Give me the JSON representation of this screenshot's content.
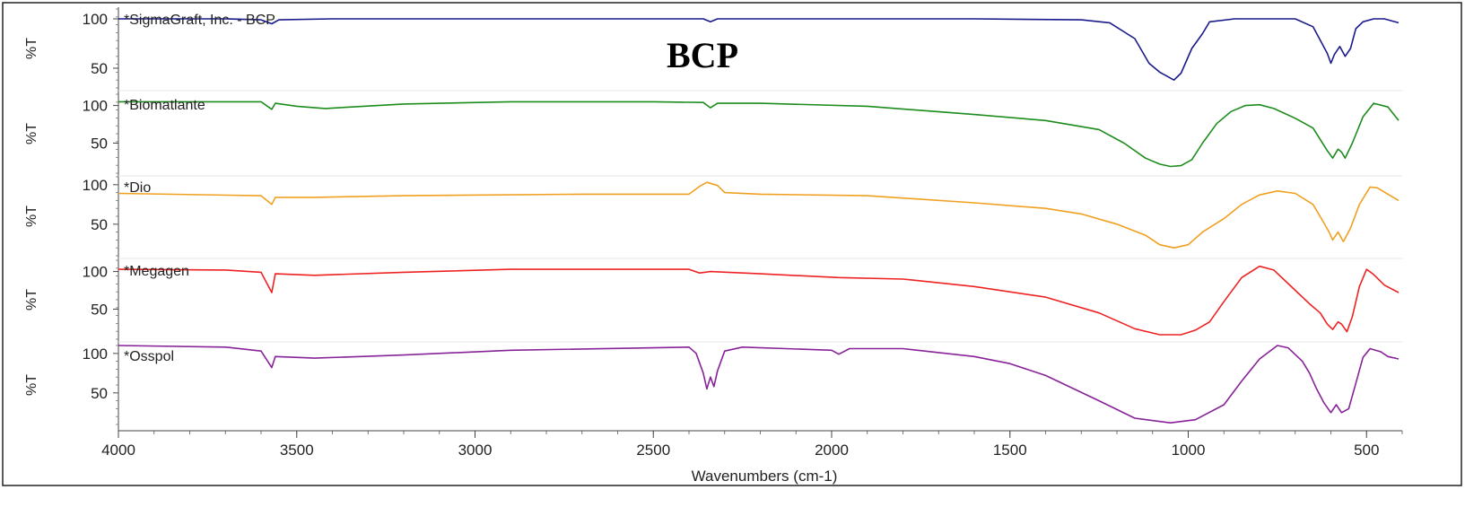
{
  "chart_data": {
    "type": "line",
    "title": "BCP",
    "xlabel": "Wavenumbers (cm-1)",
    "ylabel": "%T",
    "xlim": [
      4000,
      400
    ],
    "x_reversed": true,
    "x_ticks": [
      "4000",
      "3500",
      "3000",
      "2500",
      "2000",
      "1500",
      "1000",
      "500"
    ],
    "y_ticks": [
      "100",
      "50"
    ],
    "grid": false,
    "legend": "none",
    "panels": [
      {
        "name": "*SigmaGraft, Inc. - BCP",
        "color": "#1a1a8c",
        "ylim": [
          30,
          110
        ],
        "points": [
          [
            4000,
            100
          ],
          [
            3700,
            100
          ],
          [
            3600,
            99
          ],
          [
            3570,
            95
          ],
          [
            3550,
            99
          ],
          [
            3400,
            100
          ],
          [
            2360,
            100
          ],
          [
            2340,
            97
          ],
          [
            2320,
            100
          ],
          [
            1600,
            100
          ],
          [
            1300,
            99
          ],
          [
            1220,
            96
          ],
          [
            1150,
            80
          ],
          [
            1110,
            55
          ],
          [
            1080,
            46
          ],
          [
            1040,
            38
          ],
          [
            1020,
            45
          ],
          [
            990,
            70
          ],
          [
            960,
            85
          ],
          [
            940,
            97
          ],
          [
            870,
            100
          ],
          [
            700,
            100
          ],
          [
            650,
            92
          ],
          [
            610,
            65
          ],
          [
            600,
            55
          ],
          [
            590,
            64
          ],
          [
            575,
            72
          ],
          [
            560,
            62
          ],
          [
            545,
            70
          ],
          [
            530,
            90
          ],
          [
            510,
            97
          ],
          [
            480,
            100
          ],
          [
            450,
            100
          ],
          [
            410,
            96
          ]
        ]
      },
      {
        "name": "*Biomatlante",
        "color": "#1c8c1c",
        "ylim": [
          10,
          115
        ],
        "points": [
          [
            4000,
            105
          ],
          [
            3600,
            105
          ],
          [
            3570,
            95
          ],
          [
            3560,
            103
          ],
          [
            3500,
            99
          ],
          [
            3420,
            96
          ],
          [
            3200,
            102
          ],
          [
            2900,
            105
          ],
          [
            2500,
            105
          ],
          [
            2360,
            104
          ],
          [
            2340,
            97
          ],
          [
            2320,
            103
          ],
          [
            2200,
            103
          ],
          [
            1900,
            99
          ],
          [
            1600,
            88
          ],
          [
            1400,
            80
          ],
          [
            1250,
            68
          ],
          [
            1180,
            50
          ],
          [
            1120,
            30
          ],
          [
            1080,
            22
          ],
          [
            1050,
            19
          ],
          [
            1020,
            20
          ],
          [
            990,
            28
          ],
          [
            960,
            50
          ],
          [
            920,
            76
          ],
          [
            880,
            92
          ],
          [
            840,
            100
          ],
          [
            800,
            101
          ],
          [
            760,
            96
          ],
          [
            700,
            83
          ],
          [
            650,
            70
          ],
          [
            610,
            40
          ],
          [
            595,
            30
          ],
          [
            580,
            42
          ],
          [
            570,
            38
          ],
          [
            560,
            30
          ],
          [
            540,
            50
          ],
          [
            510,
            85
          ],
          [
            480,
            103
          ],
          [
            440,
            98
          ],
          [
            410,
            80
          ]
        ]
      },
      {
        "name": "*Dio",
        "color": "#f0a020",
        "ylim": [
          10,
          110
        ],
        "points": [
          [
            4000,
            89
          ],
          [
            3600,
            86
          ],
          [
            3570,
            75
          ],
          [
            3560,
            84
          ],
          [
            3450,
            84
          ],
          [
            3200,
            86
          ],
          [
            2700,
            88
          ],
          [
            2400,
            88
          ],
          [
            2370,
            98
          ],
          [
            2350,
            103
          ],
          [
            2320,
            99
          ],
          [
            2300,
            90
          ],
          [
            2200,
            88
          ],
          [
            1900,
            86
          ],
          [
            1600,
            77
          ],
          [
            1400,
            70
          ],
          [
            1300,
            63
          ],
          [
            1200,
            50
          ],
          [
            1120,
            36
          ],
          [
            1080,
            24
          ],
          [
            1040,
            20
          ],
          [
            1000,
            24
          ],
          [
            960,
            40
          ],
          [
            900,
            57
          ],
          [
            850,
            75
          ],
          [
            800,
            87
          ],
          [
            750,
            92
          ],
          [
            700,
            89
          ],
          [
            650,
            75
          ],
          [
            620,
            52
          ],
          [
            605,
            40
          ],
          [
            595,
            30
          ],
          [
            580,
            40
          ],
          [
            565,
            28
          ],
          [
            545,
            45
          ],
          [
            520,
            75
          ],
          [
            490,
            97
          ],
          [
            470,
            96
          ],
          [
            440,
            88
          ],
          [
            410,
            80
          ]
        ]
      },
      {
        "name": "*Megagen",
        "color": "#ee2222",
        "ylim": [
          10,
          115
        ],
        "points": [
          [
            4000,
            103
          ],
          [
            3700,
            102
          ],
          [
            3600,
            99
          ],
          [
            3570,
            72
          ],
          [
            3560,
            97
          ],
          [
            3450,
            95
          ],
          [
            3200,
            99
          ],
          [
            2900,
            103
          ],
          [
            2400,
            103
          ],
          [
            2370,
            98
          ],
          [
            2340,
            100
          ],
          [
            2200,
            97
          ],
          [
            1980,
            92
          ],
          [
            1800,
            90
          ],
          [
            1600,
            80
          ],
          [
            1400,
            66
          ],
          [
            1250,
            45
          ],
          [
            1150,
            24
          ],
          [
            1080,
            16
          ],
          [
            1020,
            16
          ],
          [
            980,
            22
          ],
          [
            940,
            33
          ],
          [
            900,
            60
          ],
          [
            850,
            92
          ],
          [
            800,
            107
          ],
          [
            760,
            102
          ],
          [
            700,
            75
          ],
          [
            660,
            57
          ],
          [
            630,
            45
          ],
          [
            610,
            30
          ],
          [
            595,
            23
          ],
          [
            580,
            33
          ],
          [
            570,
            30
          ],
          [
            555,
            20
          ],
          [
            540,
            40
          ],
          [
            520,
            80
          ],
          [
            500,
            103
          ],
          [
            480,
            96
          ],
          [
            450,
            82
          ],
          [
            410,
            72
          ]
        ]
      },
      {
        "name": "*Osspol",
        "color": "#882299",
        "ylim": [
          10,
          110
        ],
        "points": [
          [
            4000,
            110
          ],
          [
            3700,
            108
          ],
          [
            3600,
            103
          ],
          [
            3570,
            82
          ],
          [
            3560,
            96
          ],
          [
            3450,
            94
          ],
          [
            3200,
            98
          ],
          [
            2900,
            104
          ],
          [
            2400,
            108
          ],
          [
            2380,
            100
          ],
          [
            2360,
            75
          ],
          [
            2350,
            55
          ],
          [
            2340,
            70
          ],
          [
            2330,
            58
          ],
          [
            2320,
            78
          ],
          [
            2300,
            103
          ],
          [
            2250,
            108
          ],
          [
            2000,
            104
          ],
          [
            1980,
            99
          ],
          [
            1950,
            106
          ],
          [
            1800,
            106
          ],
          [
            1600,
            96
          ],
          [
            1500,
            87
          ],
          [
            1400,
            72
          ],
          [
            1250,
            40
          ],
          [
            1150,
            18
          ],
          [
            1050,
            12
          ],
          [
            980,
            16
          ],
          [
            900,
            35
          ],
          [
            850,
            65
          ],
          [
            800,
            93
          ],
          [
            750,
            110
          ],
          [
            720,
            107
          ],
          [
            680,
            90
          ],
          [
            660,
            75
          ],
          [
            640,
            55
          ],
          [
            620,
            38
          ],
          [
            600,
            25
          ],
          [
            585,
            35
          ],
          [
            570,
            25
          ],
          [
            550,
            30
          ],
          [
            530,
            62
          ],
          [
            510,
            95
          ],
          [
            490,
            106
          ],
          [
            460,
            102
          ],
          [
            440,
            96
          ],
          [
            410,
            93
          ]
        ]
      }
    ]
  }
}
